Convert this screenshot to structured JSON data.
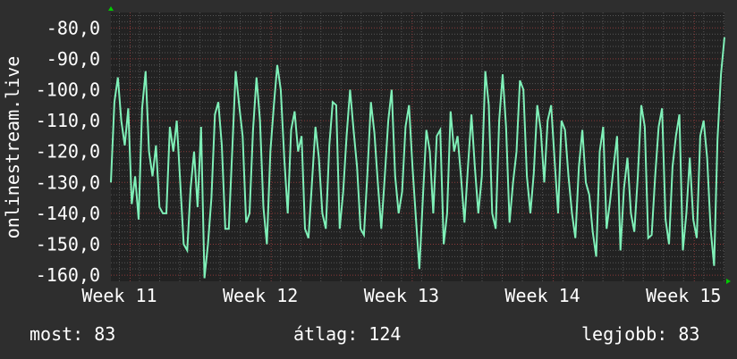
{
  "colors": {
    "background": "#2e2e2e",
    "plot_background": "#222222",
    "line": "#7ff0b8",
    "minor_grid": "#555555",
    "major_grid": "#8a3a3a",
    "arrow": "#00cc00"
  },
  "chart_data": {
    "type": "line",
    "ylabel": "onlinestream.live",
    "ylim": [
      -162,
      -75
    ],
    "yticks": [
      -80,
      -90,
      -100,
      -110,
      -120,
      -130,
      -140,
      -150,
      -160
    ],
    "ytick_labels": [
      "-80,0",
      "-90,0",
      "-100,0",
      "-110,0",
      "-120,0",
      "-130,0",
      "-140,0",
      "-150,0",
      "-160,0"
    ],
    "xticks": [
      11,
      12,
      13,
      14,
      15
    ],
    "xtick_labels": [
      "Week 11",
      "Week 12",
      "Week 13",
      "Week 14",
      "Week 15"
    ],
    "x_range": [
      10.94,
      15.29
    ],
    "grid": true,
    "values": [
      -130,
      -104,
      -96,
      -110,
      -118,
      -106,
      -137,
      -128,
      -142,
      -106,
      -94,
      -120,
      -128,
      -118,
      -138,
      -140,
      -140,
      -112,
      -120,
      -110,
      -130,
      -150,
      -152,
      -132,
      -120,
      -138,
      -112,
      -161,
      -150,
      -135,
      -108,
      -104,
      -118,
      -145,
      -145,
      -120,
      -94,
      -105,
      -115,
      -143,
      -140,
      -113,
      -96,
      -110,
      -138,
      -150,
      -120,
      -105,
      -92,
      -100,
      -122,
      -140,
      -113,
      -107,
      -120,
      -115,
      -145,
      -148,
      -130,
      -112,
      -122,
      -140,
      -145,
      -118,
      -104,
      -105,
      -145,
      -133,
      -115,
      -100,
      -113,
      -125,
      -145,
      -147,
      -127,
      -104,
      -114,
      -130,
      -145,
      -128,
      -110,
      -100,
      -128,
      -140,
      -133,
      -112,
      -105,
      -125,
      -142,
      -158,
      -135,
      -113,
      -120,
      -140,
      -115,
      -113,
      -150,
      -140,
      -107,
      -120,
      -115,
      -128,
      -143,
      -125,
      -108,
      -125,
      -140,
      -128,
      -94,
      -105,
      -140,
      -145,
      -110,
      -95,
      -112,
      -143,
      -130,
      -120,
      -97,
      -100,
      -128,
      -140,
      -127,
      -105,
      -113,
      -130,
      -110,
      -105,
      -123,
      -140,
      -110,
      -113,
      -128,
      -140,
      -148,
      -125,
      -113,
      -130,
      -134,
      -146,
      -154,
      -120,
      -112,
      -145,
      -136,
      -125,
      -115,
      -152,
      -132,
      -122,
      -140,
      -146,
      -128,
      -105,
      -112,
      -148,
      -147,
      -128,
      -112,
      -106,
      -142,
      -150,
      -125,
      -115,
      -108,
      -152,
      -140,
      -122,
      -142,
      -148,
      -115,
      -110,
      -122,
      -145,
      -157,
      -116,
      -95,
      -83
    ]
  },
  "legend": {
    "current": "most: 83",
    "average": "átlag: 124",
    "max": "legjobb: 83"
  }
}
